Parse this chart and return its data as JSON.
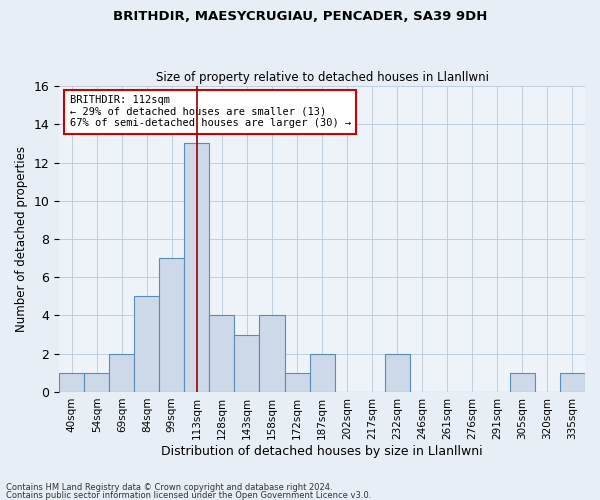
{
  "title1": "BRITHDIR, MAESYCRUGIAU, PENCADER, SA39 9DH",
  "title2": "Size of property relative to detached houses in Llanllwni",
  "xlabel": "Distribution of detached houses by size in Llanllwni",
  "ylabel": "Number of detached properties",
  "bin_labels": [
    "40sqm",
    "54sqm",
    "69sqm",
    "84sqm",
    "99sqm",
    "113sqm",
    "128sqm",
    "143sqm",
    "158sqm",
    "172sqm",
    "187sqm",
    "202sqm",
    "217sqm",
    "232sqm",
    "246sqm",
    "261sqm",
    "276sqm",
    "291sqm",
    "305sqm",
    "320sqm",
    "335sqm"
  ],
  "values": [
    1,
    1,
    2,
    5,
    7,
    13,
    4,
    3,
    4,
    1,
    2,
    0,
    0,
    2,
    0,
    0,
    0,
    0,
    1,
    0,
    1
  ],
  "bar_color": "#cdd9e8",
  "bar_edge_color": "#5a8ab5",
  "highlight_index": 5,
  "highlight_line_color": "#990000",
  "annotation_text": "BRITHDIR: 112sqm\n← 29% of detached houses are smaller (13)\n67% of semi-detached houses are larger (30) →",
  "annotation_box_color": "#ffffff",
  "annotation_box_edge": "#cc0000",
  "ylim": [
    0,
    16
  ],
  "yticks": [
    0,
    2,
    4,
    6,
    8,
    10,
    12,
    14,
    16
  ],
  "footer1": "Contains HM Land Registry data © Crown copyright and database right 2024.",
  "footer2": "Contains public sector information licensed under the Open Government Licence v3.0.",
  "bg_color": "#e8eef5",
  "plot_bg_color": "#eef3fa"
}
